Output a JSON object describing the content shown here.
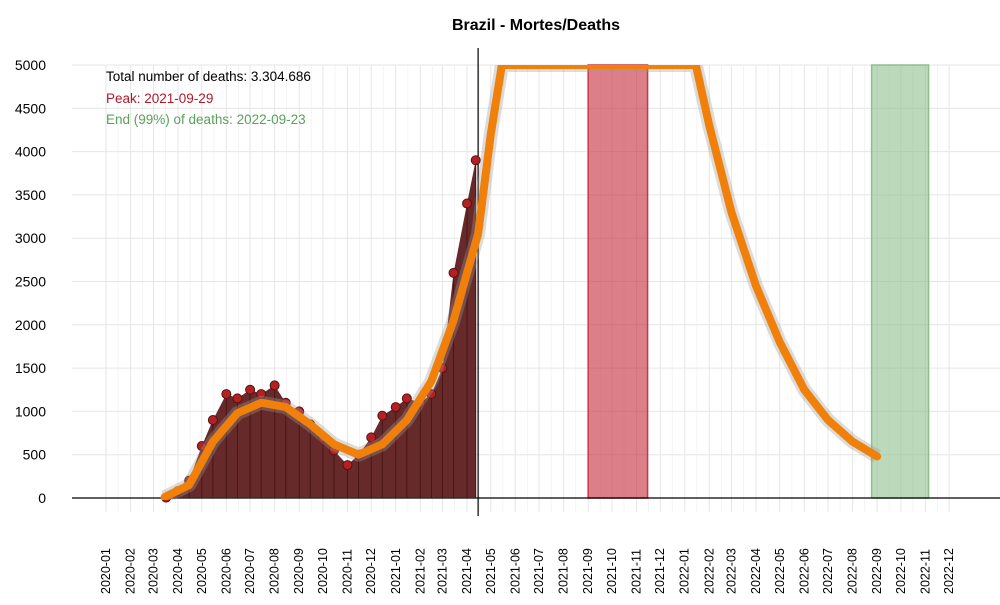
{
  "chart_data": {
    "type": "line",
    "title": "Brazil - Mortes/Deaths",
    "ylim": [
      0,
      5000
    ],
    "y_ticks": [
      0,
      500,
      1000,
      1500,
      2000,
      2500,
      3000,
      3500,
      4000,
      4500,
      5000
    ],
    "x_ticks": [
      "2020-01",
      "2020-02",
      "2020-03",
      "2020-04",
      "2020-05",
      "2020-06",
      "2020-07",
      "2020-08",
      "2020-09",
      "2020-10",
      "2020-11",
      "2020-12",
      "2021-01",
      "2021-02",
      "2021-03",
      "2021-04",
      "2021-05",
      "2021-06",
      "2021-07",
      "2021-08",
      "2021-09",
      "2021-10",
      "2021-11",
      "2021-12",
      "2022-01",
      "2022-02",
      "2022-03",
      "2022-04",
      "2022-05",
      "2022-06",
      "2022-07",
      "2022-08",
      "2022-09",
      "2022-10",
      "2022-11",
      "2022-12"
    ],
    "grid": true,
    "annotations": [
      {
        "text": "Total number of deaths: 3.304.686",
        "color": "#000000"
      },
      {
        "text": "Peak: 2021-09-29",
        "color": "#b2182b"
      },
      {
        "text": "End (99%) of deaths: 2022-09-23",
        "color": "#5aa05a"
      }
    ],
    "today_line": "2021-04-15",
    "peak_band": {
      "start": "2021-09-01",
      "end": "2021-11-15",
      "color": "#c93a48"
    },
    "end_band": {
      "start": "2022-08-25",
      "end": "2022-11-05",
      "color": "#8fbf8f"
    },
    "series": [
      {
        "kind": "observed",
        "color": "#b22222",
        "fill": "#5e1f1f",
        "x": [
          "2020-03-17",
          "2020-04-01",
          "2020-04-15",
          "2020-05-01",
          "2020-05-15",
          "2020-06-01",
          "2020-06-15",
          "2020-07-01",
          "2020-07-15",
          "2020-08-01",
          "2020-08-15",
          "2020-09-01",
          "2020-09-15",
          "2020-10-01",
          "2020-10-15",
          "2020-11-01",
          "2020-11-15",
          "2020-12-01",
          "2020-12-15",
          "2021-01-01",
          "2021-01-15",
          "2021-02-01",
          "2021-02-15",
          "2021-03-01",
          "2021-03-15",
          "2021-04-01",
          "2021-04-12"
        ],
        "y": [
          5,
          80,
          200,
          600,
          900,
          1200,
          1150,
          1250,
          1200,
          1300,
          1100,
          1000,
          850,
          700,
          550,
          380,
          500,
          700,
          950,
          1050,
          1150,
          1100,
          1200,
          1500,
          2600,
          3400,
          3900
        ]
      },
      {
        "kind": "fitted",
        "color": "#f0800a",
        "x": [
          "2020-03-15",
          "2020-04-15",
          "2020-05-15",
          "2020-06-15",
          "2020-07-15",
          "2020-08-15",
          "2020-09-15",
          "2020-10-15",
          "2020-11-15",
          "2020-12-15",
          "2021-01-15",
          "2021-02-15",
          "2021-03-15",
          "2021-04-15",
          "2021-05-01",
          "2021-05-15",
          "2022-01-15",
          "2022-02-01",
          "2022-03-01",
          "2022-04-01",
          "2022-05-01",
          "2022-06-01",
          "2022-07-01",
          "2022-08-01",
          "2022-09-01"
        ],
        "y": [
          10,
          150,
          650,
          980,
          1100,
          1050,
          850,
          620,
          500,
          620,
          900,
          1350,
          2050,
          3050,
          4200,
          5000,
          5000,
          4300,
          3300,
          2450,
          1800,
          1250,
          900,
          650,
          480
        ]
      }
    ]
  }
}
